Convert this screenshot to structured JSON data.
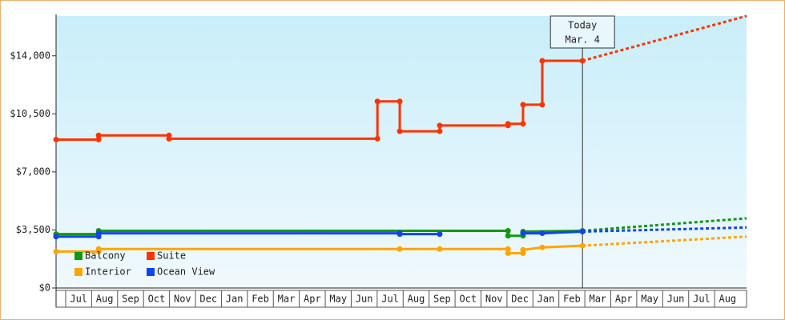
{
  "chart_data": {
    "type": "step-line",
    "categories": [
      "Jul",
      "Aug",
      "Sep",
      "Oct",
      "Nov",
      "Dec",
      "Jan",
      "Feb",
      "Mar",
      "Apr",
      "May",
      "Jun",
      "Jul",
      "Aug",
      "Sep",
      "Oct",
      "Nov",
      "Dec",
      "Jan",
      "Feb",
      "Mar",
      "Apr",
      "May",
      "Jun",
      "Jul",
      "Aug"
    ],
    "xlim": [
      -0.37,
      26.23
    ],
    "ylim": [
      0,
      16400
    ],
    "yticks": [
      {
        "value": 0,
        "label": "$0"
      },
      {
        "value": 3500,
        "label": "$3,500"
      },
      {
        "value": 7000,
        "label": "$7,000"
      },
      {
        "value": 10500,
        "label": "$10,500"
      },
      {
        "value": 14000,
        "label": "$14,000"
      }
    ],
    "today": {
      "x": 19.91,
      "label": [
        "Today",
        "Mar. 4"
      ]
    },
    "series": [
      {
        "name": "Balcony",
        "color": "#119911",
        "x": [
          -0.37,
          1.27,
          1.27,
          17.04,
          17.04,
          17.62,
          17.62,
          19.91
        ],
        "values": [
          3250,
          3250,
          3450,
          3450,
          3150,
          3150,
          3400,
          3450
        ],
        "projection": {
          "x": [
            19.91,
            26.23
          ],
          "values": [
            3450,
            4200
          ]
        }
      },
      {
        "name": "Suite",
        "color": "#ff3300",
        "x": [
          -0.37,
          1.27,
          1.27,
          3.98,
          3.98,
          12.01,
          12.01,
          12.87,
          12.87,
          14.41,
          14.41,
          17.04,
          17.04,
          17.62,
          17.62,
          18.36,
          18.36,
          19.91
        ],
        "values": [
          8950,
          8950,
          9200,
          9200,
          9000,
          9000,
          11250,
          11250,
          9450,
          9450,
          9800,
          9800,
          9900,
          9900,
          11050,
          11050,
          13700,
          13700
        ],
        "projection": {
          "x": [
            19.91,
            26.23
          ],
          "values": [
            13700,
            16400
          ]
        }
      },
      {
        "name": "Interior",
        "color": "#ffa500",
        "x": [
          -0.37,
          1.27,
          1.27,
          12.87,
          14.41,
          17.04,
          17.04,
          17.62,
          17.62,
          18.36,
          19.91
        ],
        "values": [
          2200,
          2200,
          2350,
          2350,
          2350,
          2350,
          2100,
          2100,
          2300,
          2450,
          2550
        ],
        "projection": {
          "x": [
            19.91,
            26.23
          ],
          "values": [
            2550,
            3100
          ]
        }
      },
      {
        "name": "Ocean View",
        "color": "#1144ee",
        "x": [
          -0.37,
          1.27,
          1.27,
          12.87,
          12.87,
          14.41,
          16,
          17.62,
          18.36,
          19.91
        ],
        "values": [
          3100,
          3100,
          3300,
          3300,
          3250,
          3250,
          null,
          3300,
          3300,
          3400
        ],
        "projection": {
          "x": [
            19.91,
            26.23
          ],
          "values": [
            3400,
            3650
          ]
        }
      }
    ]
  }
}
